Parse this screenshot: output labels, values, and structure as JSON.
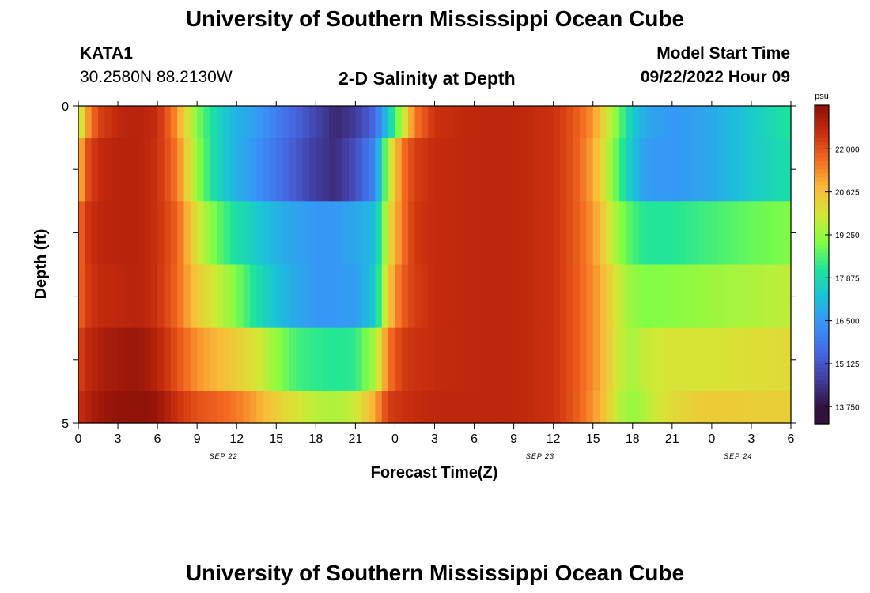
{
  "header": {
    "title": "University of Southern Mississippi Ocean Cube",
    "station": "KATA1",
    "coords": "30.2580N  88.2130W",
    "subtitle": "2-D Salinity at Depth",
    "model_start_label": "Model Start Time",
    "model_start_value": "09/22/2022 Hour 09"
  },
  "footer_title": "University of Southern Mississippi Ocean Cube",
  "chart_data": {
    "type": "heatmap",
    "title": "2-D Salinity at Depth",
    "xlabel": "Forecast Time(Z)",
    "ylabel": "Depth (ft)",
    "x_tick_labels": [
      "0",
      "3",
      "6",
      "9",
      "12",
      "15",
      "18",
      "21",
      "0",
      "3",
      "6",
      "9",
      "12",
      "15",
      "18",
      "21",
      "0",
      "3",
      "6"
    ],
    "x_date_labels": [
      {
        "at_tick": 11,
        "label": "SEP 22"
      },
      {
        "at_tick": 35,
        "label": "SEP 23"
      },
      {
        "at_tick": 50,
        "label": "SEP 24"
      }
    ],
    "x_hours": [
      0,
      54
    ],
    "y_tick_labels": [
      "0",
      "5"
    ],
    "ylim": [
      0,
      5
    ],
    "depth_rows": [
      0.25,
      1.0,
      2.0,
      3.0,
      4.0,
      4.75
    ],
    "colorbar": {
      "unit": "psu",
      "min": 13.75,
      "max": 22.0,
      "tick_labels": [
        "22.000",
        "20.625",
        "19.250",
        "17.875",
        "16.500",
        "15.125",
        "13.750"
      ],
      "tick_values": [
        22.0,
        20.625,
        19.25,
        17.875,
        16.5,
        15.125,
        13.75
      ],
      "range": [
        13.2,
        23.4
      ]
    },
    "salinity_keyframes": {
      "hours": [
        0,
        0.6,
        1.5,
        3,
        4.5,
        6,
        7.5,
        9,
        10.5,
        12,
        13.5,
        15,
        16.5,
        18,
        19.5,
        21,
        22.5,
        23.5,
        24.5,
        25.5,
        27,
        30,
        33,
        36,
        37.5,
        39,
        40,
        41,
        42,
        43,
        45,
        48,
        51,
        54
      ],
      "rows": [
        [
          19.4,
          21.0,
          22.2,
          22.7,
          22.8,
          22.6,
          21.2,
          19.0,
          17.8,
          17.0,
          16.6,
          16.0,
          15.4,
          14.8,
          14.2,
          14.6,
          15.6,
          17.5,
          19.5,
          21.5,
          22.5,
          22.7,
          22.7,
          22.5,
          22.0,
          21.2,
          20.0,
          18.8,
          17.5,
          16.8,
          16.5,
          16.8,
          17.5,
          18.2
        ],
        [
          20.5,
          22.0,
          22.6,
          22.8,
          22.8,
          22.5,
          21.5,
          19.2,
          17.8,
          17.0,
          16.4,
          15.8,
          15.2,
          14.6,
          14.3,
          15.0,
          16.2,
          19.5,
          21.5,
          22.3,
          22.6,
          22.7,
          22.7,
          22.5,
          22.0,
          21.0,
          19.8,
          18.5,
          17.3,
          16.6,
          16.5,
          16.8,
          17.5,
          18.0
        ],
        [
          21.5,
          22.4,
          22.7,
          22.8,
          22.8,
          22.5,
          21.8,
          20.0,
          18.8,
          18.0,
          17.5,
          17.0,
          16.7,
          16.5,
          16.5,
          16.8,
          17.2,
          20.0,
          21.5,
          22.4,
          22.6,
          22.7,
          22.7,
          22.5,
          22.0,
          21.2,
          20.2,
          19.2,
          18.5,
          18.2,
          18.2,
          18.5,
          18.8,
          19.0
        ],
        [
          21.6,
          22.3,
          22.6,
          22.7,
          22.8,
          22.5,
          21.7,
          20.5,
          19.8,
          19.0,
          18.0,
          17.3,
          16.8,
          16.5,
          16.5,
          16.6,
          17.5,
          20.5,
          21.8,
          22.3,
          22.6,
          22.7,
          22.7,
          22.5,
          22.0,
          21.3,
          20.6,
          19.8,
          19.2,
          19.0,
          19.1,
          19.3,
          19.5,
          19.7
        ],
        [
          22.2,
          22.6,
          22.9,
          23.1,
          23.2,
          22.8,
          22.0,
          21.2,
          20.8,
          20.4,
          20.0,
          19.2,
          18.5,
          18.3,
          18.2,
          18.3,
          19.5,
          21.5,
          22.3,
          22.5,
          22.6,
          22.7,
          22.7,
          22.5,
          22.0,
          21.3,
          20.6,
          19.8,
          19.4,
          19.8,
          20.0,
          20.0,
          20.1,
          20.2
        ],
        [
          22.5,
          22.8,
          23.1,
          23.3,
          23.4,
          23.2,
          22.5,
          22.0,
          21.8,
          21.5,
          21.0,
          20.4,
          20.0,
          19.6,
          19.5,
          19.8,
          21.0,
          22.3,
          22.5,
          22.6,
          22.7,
          22.7,
          22.7,
          22.5,
          22.0,
          21.2,
          20.5,
          19.6,
          19.2,
          19.6,
          20.2,
          20.5,
          20.4,
          20.4
        ]
      ]
    }
  }
}
